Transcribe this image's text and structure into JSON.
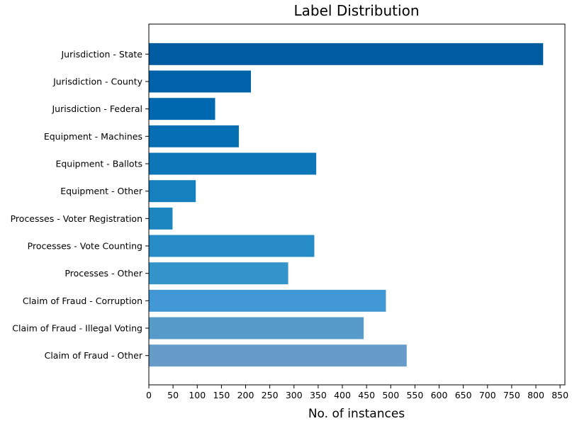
{
  "chart_data": {
    "type": "bar",
    "orientation": "horizontal",
    "title": "Label Distribution",
    "xlabel": "No. of instances",
    "ylabel": "",
    "categories": [
      "Jurisdiction - State",
      "Jurisdiction - County",
      "Jurisdiction - Federal",
      "Equipment - Machines",
      "Equipment - Ballots",
      "Equipment - Other",
      "Processes - Voter Registration",
      "Processes - Vote Counting",
      "Processes - Other",
      "Claim of Fraud - Corruption",
      "Claim of Fraud - Illegal Voting",
      "Claim of Fraud - Other"
    ],
    "values": [
      815,
      211,
      137,
      186,
      346,
      97,
      49,
      342,
      288,
      490,
      444,
      533
    ],
    "colors": [
      "#005ba1",
      "#0063aa",
      "#0068ae",
      "#066fb4",
      "#0d76b8",
      "#167fbe",
      "#1d86c1",
      "#268bc6",
      "#3394ca",
      "#4198d4",
      "#559ac8",
      "#679cc9"
    ],
    "xlim": [
      0,
      860
    ],
    "xticks": [
      0,
      50,
      100,
      150,
      200,
      250,
      300,
      350,
      400,
      450,
      500,
      550,
      600,
      650,
      700,
      750,
      800,
      850
    ],
    "grid": false,
    "legend": "none"
  }
}
